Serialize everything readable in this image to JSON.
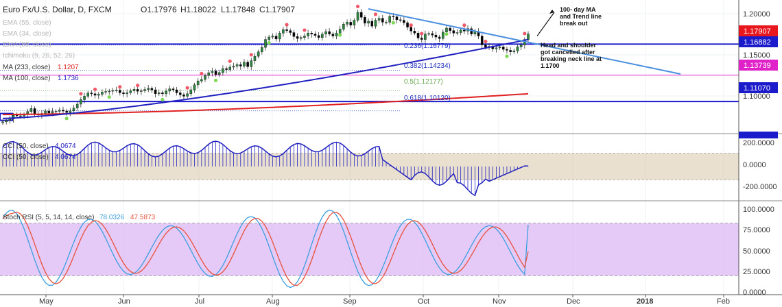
{
  "header": {
    "symbol": "Euro Fx/U.S. Dollar, D, FXCM",
    "open": "O1.17976",
    "high": "H1.18022",
    "low": "L1.17848",
    "close": "C1.17907"
  },
  "indicator_legend": [
    {
      "label": "EMA (55, close)",
      "value": "",
      "color": "#b8b8b8"
    },
    {
      "label": "EMA (34, close)",
      "value": "",
      "color": "#b8b8b8"
    },
    {
      "label": "EMA (89, close)",
      "value": "",
      "color": "#b8b8b8"
    },
    {
      "label": "Ichimoku (9, 26, 52, 26)",
      "value": "",
      "color": "#b8b8b8"
    },
    {
      "label": "MA (233, close)",
      "value": "1.1207",
      "color": "#e02020"
    },
    {
      "label": "MA (100, close)",
      "value": "1.1736",
      "color": "#2020c0"
    }
  ],
  "cci_legend": [
    {
      "label": "CCI (50, close)",
      "value": "4.0674"
    },
    {
      "label": "CCI (50, close)",
      "value": "4.0674"
    }
  ],
  "rsi_legend": {
    "label": "Stoch RSI (5, 5, 14, 14, close)",
    "k": "78.0326",
    "d": "47.5873"
  },
  "annotations": {
    "breakout": [
      "100- day MA",
      "and Trend line",
      "break out"
    ],
    "head_shoulder": [
      "Head and shoulder",
      "got cancelled after",
      "breaking neck line at",
      "1.1700"
    ]
  },
  "fib_levels": [
    {
      "label": "0.236(1.16779)",
      "color": "#2030c0"
    },
    {
      "label": "0.382(1.14234)",
      "color": "#2030c0"
    },
    {
      "label": "0.5(1.12177)",
      "color": "#6aa84f"
    },
    {
      "label": "0.618(1.10120)",
      "color": "#2030c0"
    }
  ],
  "price_tags": [
    {
      "label": "1.17907",
      "color": "#e8161d",
      "value": 1.17907
    },
    {
      "label": "1.16882",
      "color": "#1b1bcc",
      "value": 1.16882
    },
    {
      "label": "1.13739",
      "color": "#e020c8",
      "value": 1.13739
    },
    {
      "label": "1.11070",
      "color": "#1b1bcc",
      "value": 1.1107
    }
  ],
  "colors": {
    "up": "#26a69a",
    "down": "#ef5350",
    "ma100": "#2020c0",
    "ma233": "#e02020",
    "trend": "#4a8fe0",
    "cci": "#2020c0",
    "rsi_k": "#3a9ee0",
    "rsi_d": "#e8503a",
    "band": "#d8c6a8",
    "rsi_band": "#dcb8f4"
  },
  "chart_data": [
    {
      "type": "candlestick",
      "title": "Euro Fx/U.S. Dollar, D, FXCM",
      "ylim": [
        1.0795,
        1.2135
      ],
      "yticks": [
        "1.20000",
        "1.15000",
        "1.10000"
      ],
      "xticks": [
        "May",
        "Jun",
        "Jul",
        "Aug",
        "Sep",
        "Oct",
        "Nov",
        "Dec",
        "2018",
        "Feb"
      ],
      "close": [
        1.0901,
        1.0915,
        1.093,
        1.0968,
        1.0962,
        1.096,
        1.0975,
        1.1005,
        1.1035,
        1.098,
        1.097,
        1.0985,
        1.101,
        1.099,
        1.1005,
        1.1008,
        1.102,
        1.101,
        1.0995,
        1.1012,
        1.104,
        1.108,
        1.1125,
        1.116,
        1.1192,
        1.1185,
        1.117,
        1.118,
        1.1202,
        1.1208,
        1.1212,
        1.1218,
        1.1222,
        1.1195,
        1.1185,
        1.1195,
        1.1215,
        1.123,
        1.121,
        1.1215,
        1.1228,
        1.124,
        1.1225,
        1.1185,
        1.1195,
        1.1185,
        1.1212,
        1.1235,
        1.1225,
        1.1195,
        1.1175,
        1.116,
        1.1185,
        1.1225,
        1.1275,
        1.1315,
        1.133,
        1.137,
        1.1398,
        1.1415,
        1.138,
        1.14,
        1.144,
        1.143,
        1.1455,
        1.1465,
        1.148,
        1.1465,
        1.1505,
        1.146,
        1.152,
        1.1565,
        1.161,
        1.1655,
        1.1735,
        1.176,
        1.177,
        1.174,
        1.18,
        1.1835,
        1.1825,
        1.1805,
        1.1765,
        1.1745,
        1.1755,
        1.177,
        1.18,
        1.179,
        1.1775,
        1.1755,
        1.179,
        1.1815,
        1.179,
        1.177,
        1.18,
        1.184,
        1.189,
        1.191,
        1.188,
        1.193,
        1.201,
        1.196,
        1.19,
        1.192,
        1.187,
        1.193,
        1.195,
        1.191,
        1.191,
        1.197,
        1.1965,
        1.1935,
        1.193,
        1.1905,
        1.186,
        1.182,
        1.18,
        1.175,
        1.1735,
        1.179,
        1.1795,
        1.178,
        1.176,
        1.1745,
        1.181,
        1.185,
        1.1825,
        1.18,
        1.1805,
        1.183,
        1.182,
        1.1845,
        1.179,
        1.1815,
        1.177,
        1.168,
        1.1655,
        1.1665,
        1.164,
        1.165,
        1.166,
        1.1635,
        1.1625,
        1.161,
        1.162,
        1.166,
        1.168,
        1.1735,
        1.1791
      ],
      "fib_values": [
        1.16779,
        1.14234,
        1.12177,
        1.1012
      ]
    },
    {
      "type": "line",
      "title": "CCI (50, close)",
      "ylim": [
        -236,
        236
      ],
      "yticks": [
        "200.0000",
        "0.0000",
        "-200.0000"
      ],
      "series": [
        {
          "name": "CCI (50, close)",
          "last": 4.0674
        }
      ]
    },
    {
      "type": "line",
      "title": "Stoch RSI (5, 5, 14, 14, close)",
      "ylim": [
        0,
        100
      ],
      "yticks": [
        "100.0000",
        "75.0000",
        "50.0000",
        "25.0000",
        "0.0000"
      ],
      "series": [
        {
          "name": "K",
          "last": 78.0326
        },
        {
          "name": "D",
          "last": 47.5873
        }
      ]
    }
  ]
}
